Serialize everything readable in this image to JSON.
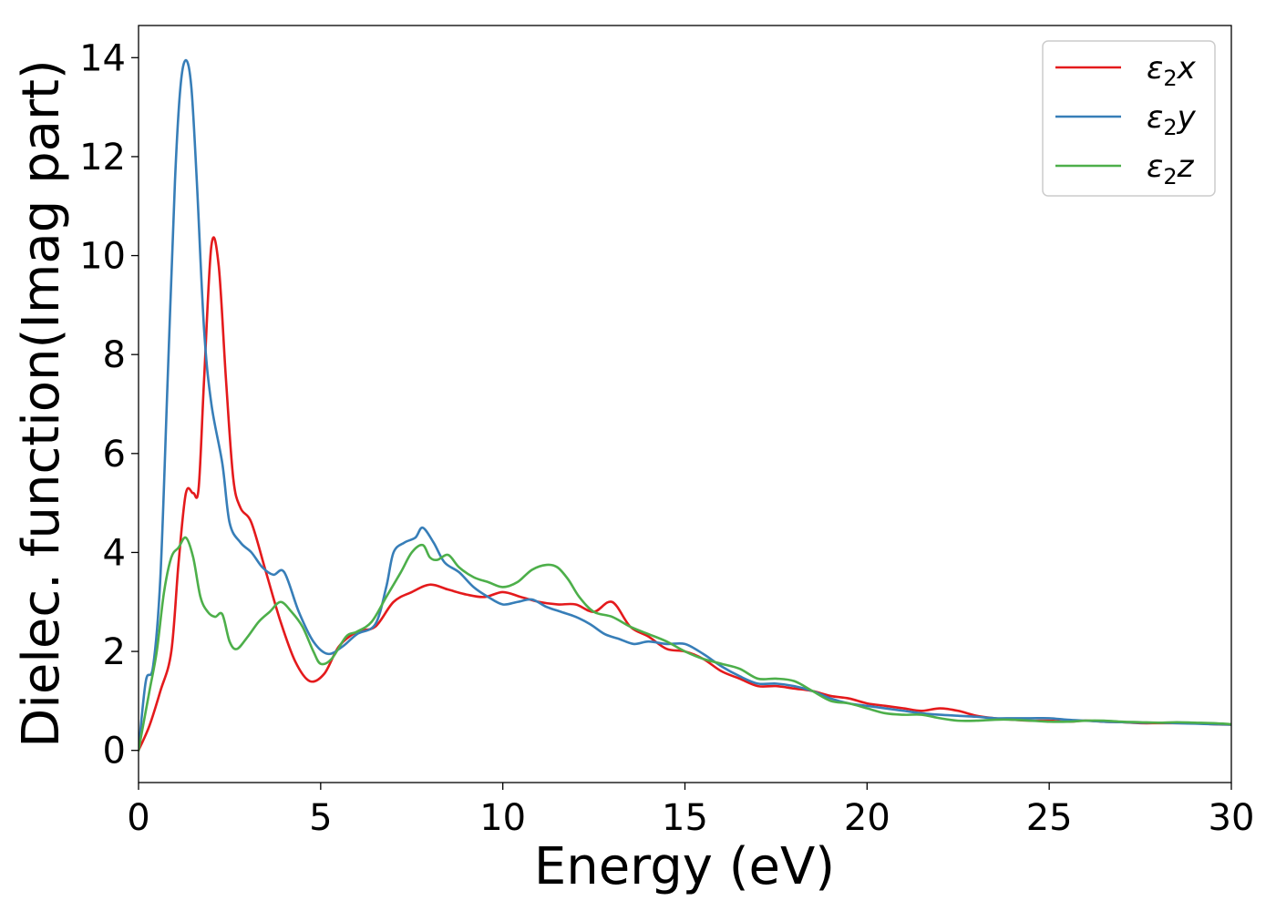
{
  "chart_data": {
    "type": "line",
    "title": "",
    "xlabel": "Energy (eV)",
    "ylabel": "Dielec. function(Imag part)",
    "xlim": [
      0,
      30
    ],
    "ylim": [
      -0.65,
      14.65
    ],
    "xticks": [
      0,
      5,
      10,
      15,
      20,
      25,
      30
    ],
    "yticks": [
      0,
      2,
      4,
      6,
      8,
      10,
      12,
      14
    ],
    "grid": false,
    "legend_position": "top-right",
    "series": [
      {
        "name": "ε2x",
        "legend": {
          "sym": "ε",
          "sub": "2",
          "var": "x"
        },
        "color": "#e41a1c",
        "points": [
          [
            0,
            0
          ],
          [
            0.3,
            0.5
          ],
          [
            0.6,
            1.2
          ],
          [
            0.9,
            2.0
          ],
          [
            1.1,
            3.8
          ],
          [
            1.3,
            5.2
          ],
          [
            1.5,
            5.2
          ],
          [
            1.65,
            5.3
          ],
          [
            1.8,
            7.5
          ],
          [
            2.0,
            10.2
          ],
          [
            2.2,
            9.8
          ],
          [
            2.4,
            7.5
          ],
          [
            2.6,
            5.5
          ],
          [
            2.8,
            4.9
          ],
          [
            3.1,
            4.6
          ],
          [
            3.5,
            3.6
          ],
          [
            3.9,
            2.6
          ],
          [
            4.3,
            1.8
          ],
          [
            4.7,
            1.4
          ],
          [
            5.1,
            1.55
          ],
          [
            5.5,
            2.1
          ],
          [
            6.0,
            2.4
          ],
          [
            6.5,
            2.5
          ],
          [
            7.0,
            3.0
          ],
          [
            7.5,
            3.2
          ],
          [
            8.0,
            3.35
          ],
          [
            8.5,
            3.25
          ],
          [
            9.0,
            3.15
          ],
          [
            9.5,
            3.1
          ],
          [
            10.0,
            3.2
          ],
          [
            10.5,
            3.1
          ],
          [
            11.0,
            3.0
          ],
          [
            11.5,
            2.95
          ],
          [
            12.0,
            2.95
          ],
          [
            12.5,
            2.8
          ],
          [
            13.0,
            3.0
          ],
          [
            13.5,
            2.5
          ],
          [
            14.0,
            2.3
          ],
          [
            14.5,
            2.05
          ],
          [
            15.0,
            2.0
          ],
          [
            15.5,
            1.85
          ],
          [
            16.0,
            1.6
          ],
          [
            16.5,
            1.45
          ],
          [
            17.0,
            1.3
          ],
          [
            17.5,
            1.3
          ],
          [
            18.0,
            1.25
          ],
          [
            18.5,
            1.2
          ],
          [
            19.0,
            1.1
          ],
          [
            19.5,
            1.05
          ],
          [
            20.0,
            0.95
          ],
          [
            20.5,
            0.9
          ],
          [
            21.0,
            0.85
          ],
          [
            21.5,
            0.8
          ],
          [
            22.0,
            0.85
          ],
          [
            22.5,
            0.8
          ],
          [
            23.0,
            0.7
          ],
          [
            23.5,
            0.65
          ],
          [
            24.0,
            0.62
          ],
          [
            24.5,
            0.6
          ],
          [
            25.0,
            0.6
          ],
          [
            25.5,
            0.58
          ],
          [
            26.0,
            0.6
          ],
          [
            26.5,
            0.58
          ],
          [
            27.0,
            0.57
          ],
          [
            27.5,
            0.55
          ],
          [
            28.0,
            0.55
          ],
          [
            28.5,
            0.55
          ],
          [
            29.0,
            0.55
          ],
          [
            29.5,
            0.53
          ],
          [
            30.0,
            0.52
          ]
        ]
      },
      {
        "name": "ε2y",
        "legend": {
          "sym": "ε",
          "sub": "2",
          "var": "y"
        },
        "color": "#377eb8",
        "points": [
          [
            0,
            0
          ],
          [
            0.2,
            1.4
          ],
          [
            0.4,
            1.7
          ],
          [
            0.6,
            3.5
          ],
          [
            0.8,
            7.5
          ],
          [
            1.0,
            11.5
          ],
          [
            1.15,
            13.4
          ],
          [
            1.3,
            13.95
          ],
          [
            1.45,
            13.4
          ],
          [
            1.6,
            11.5
          ],
          [
            1.8,
            8.5
          ],
          [
            2.0,
            7.0
          ],
          [
            2.3,
            5.8
          ],
          [
            2.5,
            4.6
          ],
          [
            2.8,
            4.2
          ],
          [
            3.1,
            4.0
          ],
          [
            3.4,
            3.7
          ],
          [
            3.7,
            3.55
          ],
          [
            4.0,
            3.6
          ],
          [
            4.4,
            2.8
          ],
          [
            4.8,
            2.2
          ],
          [
            5.2,
            1.95
          ],
          [
            5.6,
            2.1
          ],
          [
            6.0,
            2.35
          ],
          [
            6.5,
            2.55
          ],
          [
            6.8,
            3.3
          ],
          [
            7.0,
            4.0
          ],
          [
            7.3,
            4.2
          ],
          [
            7.6,
            4.3
          ],
          [
            7.8,
            4.5
          ],
          [
            8.1,
            4.2
          ],
          [
            8.4,
            3.8
          ],
          [
            8.8,
            3.6
          ],
          [
            9.2,
            3.3
          ],
          [
            9.6,
            3.1
          ],
          [
            10.0,
            2.95
          ],
          [
            10.4,
            3.0
          ],
          [
            10.8,
            3.05
          ],
          [
            11.2,
            2.9
          ],
          [
            11.6,
            2.8
          ],
          [
            12.0,
            2.7
          ],
          [
            12.4,
            2.55
          ],
          [
            12.8,
            2.35
          ],
          [
            13.2,
            2.25
          ],
          [
            13.6,
            2.15
          ],
          [
            14.0,
            2.2
          ],
          [
            14.5,
            2.15
          ],
          [
            15.0,
            2.15
          ],
          [
            15.5,
            1.95
          ],
          [
            16.0,
            1.7
          ],
          [
            16.5,
            1.5
          ],
          [
            17.0,
            1.35
          ],
          [
            17.5,
            1.35
          ],
          [
            18.0,
            1.3
          ],
          [
            18.5,
            1.2
          ],
          [
            19.0,
            1.05
          ],
          [
            19.5,
            0.95
          ],
          [
            20.0,
            0.9
          ],
          [
            20.5,
            0.85
          ],
          [
            21.0,
            0.8
          ],
          [
            21.5,
            0.75
          ],
          [
            22.0,
            0.72
          ],
          [
            22.5,
            0.7
          ],
          [
            23.0,
            0.68
          ],
          [
            23.5,
            0.65
          ],
          [
            24.0,
            0.65
          ],
          [
            24.5,
            0.65
          ],
          [
            25.0,
            0.65
          ],
          [
            25.5,
            0.62
          ],
          [
            26.0,
            0.6
          ],
          [
            26.5,
            0.58
          ],
          [
            27.0,
            0.57
          ],
          [
            27.5,
            0.56
          ],
          [
            28.0,
            0.56
          ],
          [
            28.5,
            0.55
          ],
          [
            29.0,
            0.54
          ],
          [
            29.5,
            0.53
          ],
          [
            30.0,
            0.52
          ]
        ]
      },
      {
        "name": "ε2z",
        "legend": {
          "sym": "ε",
          "sub": "2",
          "var": "z"
        },
        "color": "#4daf4a",
        "points": [
          [
            0,
            0
          ],
          [
            0.3,
            1.2
          ],
          [
            0.5,
            2.0
          ],
          [
            0.7,
            3.2
          ],
          [
            0.9,
            3.9
          ],
          [
            1.1,
            4.1
          ],
          [
            1.3,
            4.3
          ],
          [
            1.5,
            3.9
          ],
          [
            1.7,
            3.1
          ],
          [
            1.9,
            2.8
          ],
          [
            2.1,
            2.7
          ],
          [
            2.3,
            2.75
          ],
          [
            2.5,
            2.2
          ],
          [
            2.7,
            2.05
          ],
          [
            3.0,
            2.3
          ],
          [
            3.3,
            2.6
          ],
          [
            3.6,
            2.8
          ],
          [
            3.9,
            3.0
          ],
          [
            4.2,
            2.8
          ],
          [
            4.5,
            2.5
          ],
          [
            4.8,
            2.0
          ],
          [
            5.0,
            1.75
          ],
          [
            5.3,
            1.85
          ],
          [
            5.7,
            2.3
          ],
          [
            6.0,
            2.4
          ],
          [
            6.4,
            2.6
          ],
          [
            6.8,
            3.1
          ],
          [
            7.2,
            3.6
          ],
          [
            7.5,
            4.0
          ],
          [
            7.8,
            4.15
          ],
          [
            8.0,
            3.9
          ],
          [
            8.2,
            3.85
          ],
          [
            8.5,
            3.95
          ],
          [
            8.8,
            3.7
          ],
          [
            9.2,
            3.5
          ],
          [
            9.6,
            3.4
          ],
          [
            10.0,
            3.3
          ],
          [
            10.4,
            3.4
          ],
          [
            10.8,
            3.65
          ],
          [
            11.2,
            3.75
          ],
          [
            11.5,
            3.7
          ],
          [
            11.8,
            3.45
          ],
          [
            12.1,
            3.1
          ],
          [
            12.5,
            2.8
          ],
          [
            13.0,
            2.7
          ],
          [
            13.5,
            2.5
          ],
          [
            14.0,
            2.35
          ],
          [
            14.5,
            2.2
          ],
          [
            15.0,
            2.0
          ],
          [
            15.5,
            1.85
          ],
          [
            16.0,
            1.75
          ],
          [
            16.5,
            1.65
          ],
          [
            17.0,
            1.45
          ],
          [
            17.5,
            1.45
          ],
          [
            18.0,
            1.4
          ],
          [
            18.5,
            1.2
          ],
          [
            19.0,
            1.0
          ],
          [
            19.5,
            0.95
          ],
          [
            20.0,
            0.85
          ],
          [
            20.5,
            0.75
          ],
          [
            21.0,
            0.72
          ],
          [
            21.5,
            0.72
          ],
          [
            22.0,
            0.65
          ],
          [
            22.5,
            0.6
          ],
          [
            23.0,
            0.6
          ],
          [
            23.5,
            0.62
          ],
          [
            24.0,
            0.62
          ],
          [
            24.5,
            0.6
          ],
          [
            25.0,
            0.58
          ],
          [
            25.5,
            0.58
          ],
          [
            26.0,
            0.6
          ],
          [
            26.5,
            0.6
          ],
          [
            27.0,
            0.58
          ],
          [
            27.5,
            0.57
          ],
          [
            28.0,
            0.56
          ],
          [
            28.5,
            0.57
          ],
          [
            29.0,
            0.56
          ],
          [
            29.5,
            0.55
          ],
          [
            30.0,
            0.53
          ]
        ]
      }
    ]
  }
}
